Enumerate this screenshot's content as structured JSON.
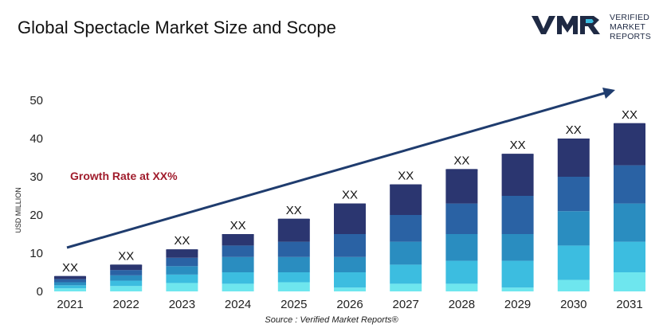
{
  "title": "Global Spectacle Market Size and Scope",
  "logo": {
    "mark_text": "VMR",
    "line1": "VERIFIED",
    "line2": "MARKET",
    "line3": "REPORTS"
  },
  "annotation": "Growth Rate at XX%",
  "source": "Source : Verified Market Reports®",
  "colors": {
    "segments": [
      "#6ee6ee",
      "#3cbde0",
      "#2a8dc0",
      "#2a62a4",
      "#2b3670"
    ],
    "trend_arrow": "#1f3c6e",
    "annotation": "#a01c2c"
  },
  "chart_data": {
    "type": "bar",
    "stacked": true,
    "title": "Global Spectacle Market Size and Scope",
    "ylabel": "USD MILLION",
    "xlabel": "",
    "ylim": [
      0,
      50
    ],
    "yticks": [
      0,
      10,
      20,
      30,
      40,
      50
    ],
    "categories": [
      "2021",
      "2022",
      "2023",
      "2024",
      "2025",
      "2026",
      "2027",
      "2028",
      "2029",
      "2030",
      "2031"
    ],
    "totals": [
      4,
      7,
      11,
      15,
      19,
      23,
      28,
      32,
      36,
      40,
      44
    ],
    "bar_labels": [
      "XX",
      "XX",
      "XX",
      "XX",
      "XX",
      "XX",
      "XX",
      "XX",
      "XX",
      "XX",
      "XX"
    ],
    "series": [
      {
        "values": [
          0.8,
          1.4,
          2.2,
          2.0,
          2.4,
          1.0,
          2.0,
          2.0,
          1.0,
          3.0,
          5.0
        ]
      },
      {
        "values": [
          0.8,
          1.4,
          2.2,
          3.0,
          2.6,
          4.0,
          5.0,
          6.0,
          7.0,
          9.0,
          8.0
        ]
      },
      {
        "values": [
          0.8,
          1.4,
          2.2,
          4.0,
          4.0,
          4.0,
          6.0,
          7.0,
          7.0,
          9.0,
          10.0
        ]
      },
      {
        "values": [
          0.8,
          1.4,
          2.2,
          3.0,
          4.0,
          6.0,
          7.0,
          8.0,
          10.0,
          9.0,
          10.0
        ]
      },
      {
        "values": [
          0.8,
          1.4,
          2.2,
          3.0,
          6.0,
          8.0,
          8.0,
          9.0,
          11.0,
          10.0,
          11.0
        ]
      }
    ],
    "grid": false,
    "trend_arrow": true
  }
}
